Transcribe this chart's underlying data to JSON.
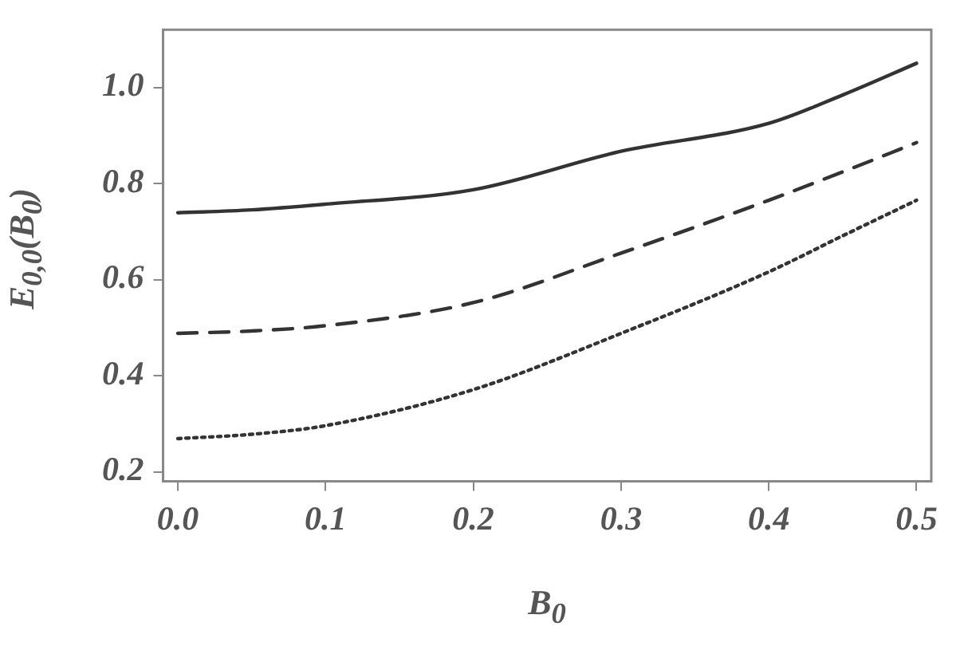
{
  "chart_data": {
    "type": "line",
    "xlabel": "B$_{0}$",
    "ylabel": "E$_{0,0}$(B$_{0}$)",
    "x": [
      0,
      0.05,
      0.1,
      0.2,
      0.3,
      0.4,
      0.45,
      0.5
    ],
    "series": [
      {
        "color": "#333333",
        "line_style": "solid",
        "values": [
          0.739,
          0.745,
          0.757,
          0.787,
          0.867,
          0.925,
          0.984,
          1.05
        ]
      },
      {
        "color": "#333333",
        "line_style": "dashed",
        "values": [
          0.488,
          0.493,
          0.504,
          0.552,
          0.655,
          0.765,
          0.824,
          0.885
        ]
      },
      {
        "color": "#333333",
        "line_style": "dotted",
        "values": [
          0.269,
          0.278,
          0.296,
          0.371,
          0.488,
          0.616,
          0.691,
          0.765
        ]
      }
    ],
    "xlim": [
      -0.01,
      0.51
    ],
    "ylim": [
      0.18,
      1.12
    ],
    "xticks": [
      {
        "value": 0,
        "label": "0.0"
      },
      0.1,
      0.2,
      0.3,
      0.4,
      0.5
    ],
    "yticks": [
      0.2,
      0.4,
      0.6,
      0.8,
      {
        "value": 1,
        "label": "1.0"
      }
    ],
    "grid": false,
    "legend": false,
    "marker": "none"
  }
}
